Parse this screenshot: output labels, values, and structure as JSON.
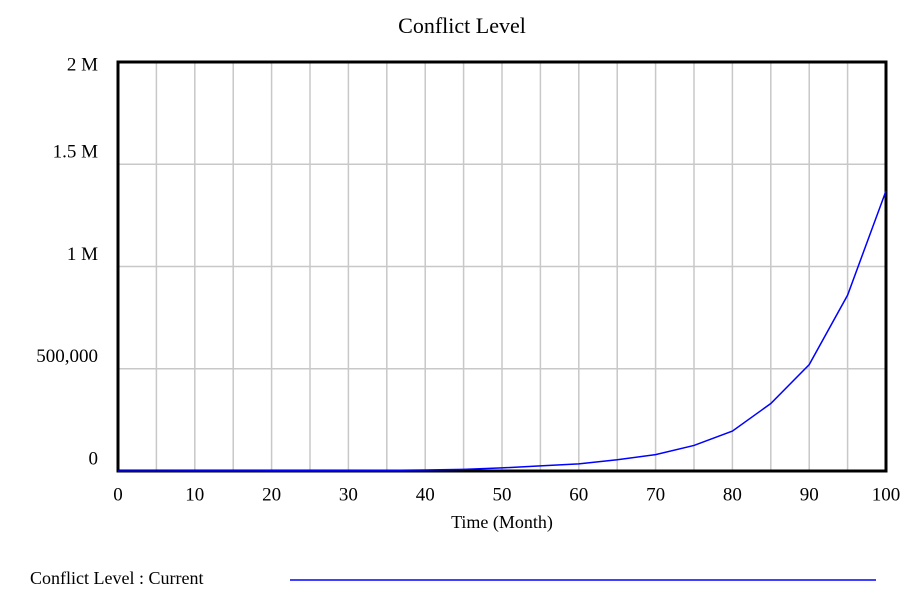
{
  "chart_data": {
    "type": "line",
    "title": "Conflict Level",
    "xlabel": "Time (Month)",
    "x": [
      0,
      5,
      10,
      15,
      20,
      25,
      30,
      35,
      40,
      45,
      50,
      55,
      60,
      65,
      70,
      75,
      80,
      85,
      90,
      95,
      100
    ],
    "series": [
      {
        "name": "Conflict Level : Current",
        "color": "#0000ff",
        "values": [
          200,
          300,
          450,
          650,
          950,
          1400,
          2100,
          3200,
          5000,
          8000,
          15000,
          25000,
          35000,
          55000,
          80000,
          125000,
          195000,
          330000,
          520000,
          860000,
          1370000
        ]
      }
    ],
    "xlim": [
      0,
      100
    ],
    "xticks": [
      0,
      10,
      20,
      30,
      40,
      50,
      60,
      70,
      80,
      90,
      100
    ],
    "xminorticks": [
      5,
      15,
      25,
      35,
      45,
      55,
      65,
      75,
      85,
      95
    ],
    "ylim": [
      0,
      2000000
    ],
    "yticks": [
      0,
      {
        "value": 500000,
        "label": "500,000"
      },
      {
        "value": 1000000,
        "label": "1 M"
      },
      {
        "value": 1500000,
        "label": "1.5 M"
      },
      {
        "value": 2000000,
        "label": "2 M"
      }
    ],
    "grid": true
  }
}
